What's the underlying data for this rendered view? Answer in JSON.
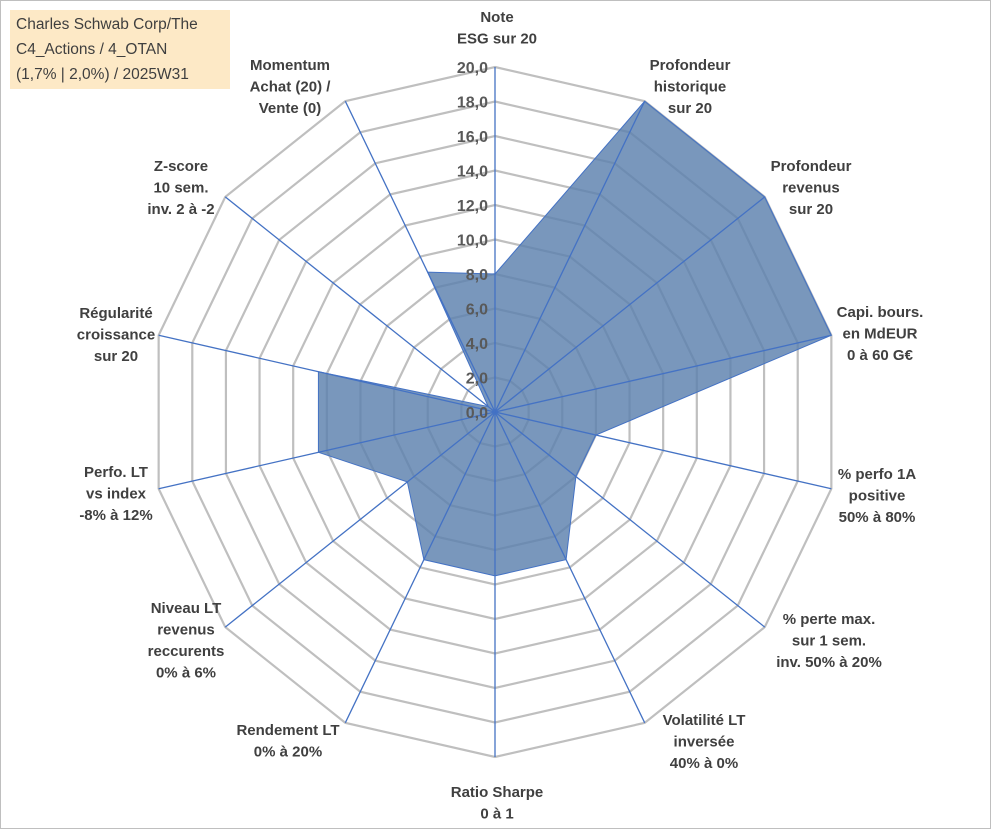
{
  "title_box": {
    "lines": [
      "Charles Schwab Corp/The",
      "C4_Actions / 4_OTAN",
      "(1,7% | 2,0%) / 2025W31"
    ]
  },
  "chart_data": {
    "type": "radar",
    "title": "Charles Schwab Corp/The C4_Actions / 4_OTAN (1,7% | 2,0%) / 2025W31",
    "rmin": 0,
    "rmax": 20,
    "tick_step": 2,
    "ticks": [
      "0,0",
      "2,0",
      "4,0",
      "6,0",
      "8,0",
      "10,0",
      "12,0",
      "14,0",
      "16,0",
      "18,0",
      "20,0"
    ],
    "grid": true,
    "categories": [
      [
        "Note",
        "ESG sur 20"
      ],
      [
        "Profondeur",
        "historique",
        "sur 20"
      ],
      [
        "Profondeur",
        "revenus",
        "sur 20"
      ],
      [
        "Capi. bours.",
        "en MdEUR",
        "0 à 60 G€"
      ],
      [
        "% perfo 1A",
        "positive",
        "50% à 80%"
      ],
      [
        "% perte max.",
        "sur 1 sem.",
        "inv. 50% à 20%"
      ],
      [
        "Volatilité LT",
        "inversée",
        "40% à 0%"
      ],
      [
        "Ratio Sharpe",
        "0 à 1"
      ],
      [
        "Rendement LT",
        "0% à 20%"
      ],
      [
        "Niveau LT",
        "revenus",
        "reccurents",
        "0% à 6%"
      ],
      [
        "Perfo. LT",
        "vs index",
        "-8% à 12%"
      ],
      [
        "Régularité",
        "croissance",
        "sur 20"
      ],
      [
        "Z-score",
        "10 sem.",
        "inv. 2 à -2"
      ],
      [
        "Momentum",
        "Achat (20) /",
        "Vente (0)"
      ]
    ],
    "series": [
      {
        "values": [
          8.0,
          20.0,
          20.0,
          20.0,
          6.0,
          6.0,
          9.5,
          9.5,
          9.5,
          6.5,
          10.5,
          10.5,
          0.5,
          9.0
        ],
        "color": "#5b80ad"
      }
    ],
    "colors": {
      "fill": "#5b80ad",
      "axis_line": "#4472c4",
      "grid_line": "#bfbfbf",
      "title_bg": "#fde9c6"
    }
  }
}
